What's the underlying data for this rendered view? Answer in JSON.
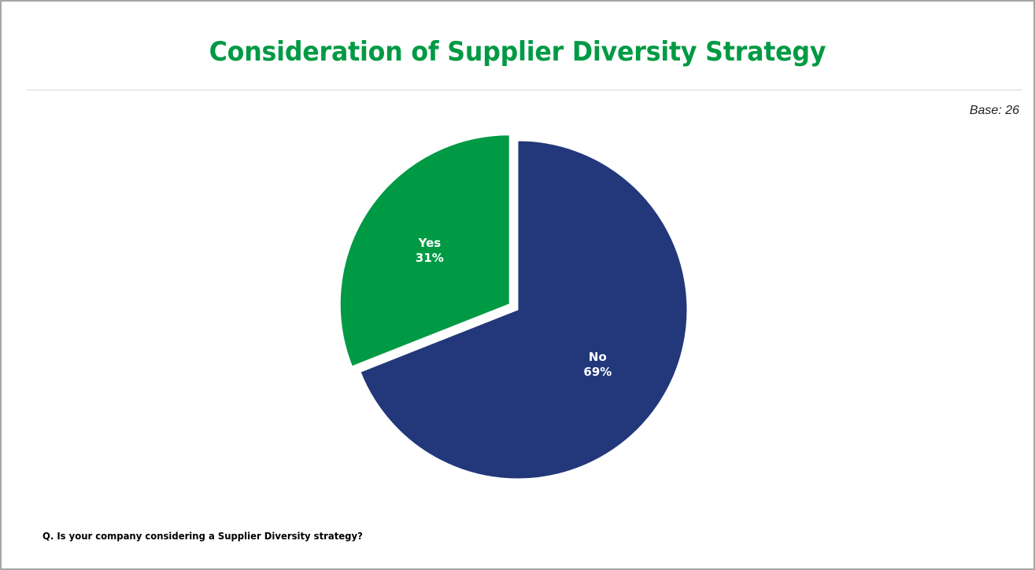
{
  "slide": {
    "title": "Consideration of Supplier Diversity Strategy",
    "base": "Base: 26",
    "question": "Q. Is your company considering a Supplier Diversity strategy?"
  },
  "chart_data": {
    "type": "pie",
    "title": "Consideration of Supplier Diversity Strategy",
    "slices": [
      {
        "label": "No",
        "value": 69,
        "value_label": "69%",
        "color": "#22387a"
      },
      {
        "label": "Yes",
        "value": 31,
        "value_label": "31%",
        "color": "#009a44",
        "exploded": true
      }
    ],
    "legend": "none"
  }
}
